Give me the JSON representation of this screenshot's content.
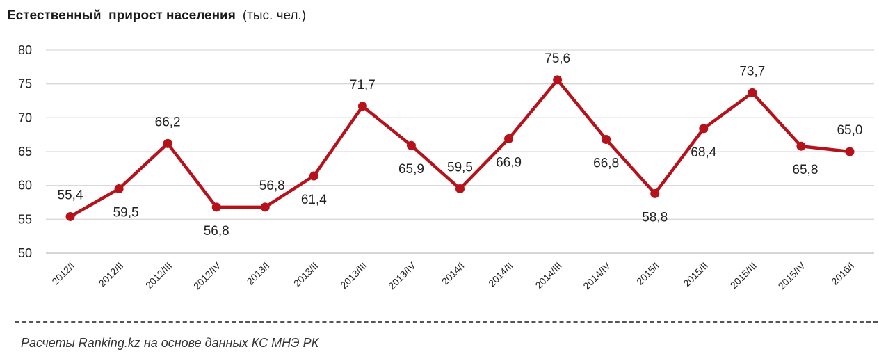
{
  "header": {
    "title": "Естественный  прирост населения",
    "unit": "(тыс. чел.)"
  },
  "footer": {
    "source": "Расчеты Ranking.kz на основе данных КС МНЭ РК"
  },
  "chart_data": {
    "type": "line",
    "title": "Естественный  прирост населения",
    "ylabel": "(тыс. чел.)",
    "xlabel": "",
    "ylim": [
      50,
      80
    ],
    "yticks": [
      "50",
      "55",
      "60",
      "65",
      "70",
      "75",
      "80"
    ],
    "grid": true,
    "categories": [
      "2012/I",
      "2012/II",
      "2012/III",
      "2012/IV",
      "2013/I",
      "2013/II",
      "2013/III",
      "2013/IV",
      "2014/I",
      "2014/II",
      "2014/III",
      "2014/IV",
      "2015/I",
      "2015/II",
      "2015/III",
      "2015/IV",
      "2016/I"
    ],
    "series": [
      {
        "color": "#b5121b",
        "values": [
          55.4,
          59.5,
          66.2,
          56.8,
          56.8,
          61.4,
          71.7,
          65.9,
          59.5,
          66.9,
          75.6,
          66.8,
          58.8,
          68.4,
          73.7,
          65.8,
          65.0
        ],
        "labels": [
          "55,4",
          "59,5",
          "66,2",
          "56,8",
          "56,8",
          "61,4",
          "71,7",
          "65,9",
          "59,5",
          "66,9",
          "75,6",
          "66,8",
          "58,8",
          "68,4",
          "73,7",
          "65,8",
          "65,0"
        ]
      }
    ]
  }
}
